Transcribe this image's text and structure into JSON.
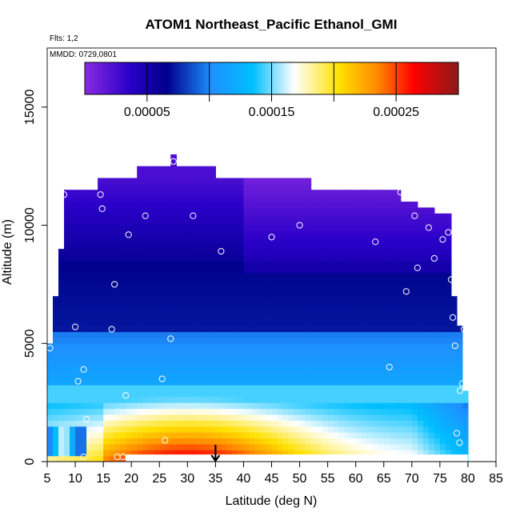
{
  "chart_data": {
    "type": "heatmap",
    "title": "ATOM1 Northeast_Pacific Ethanol_GMI",
    "note_flights": "Flts: 1,2",
    "note_dates": "MMDD: 0729,0801",
    "xlabel": "Latitude (deg N)",
    "ylabel": "Altitude (m)",
    "xlim": [
      5,
      85
    ],
    "ylim": [
      0,
      17500
    ],
    "x_ticks": [
      "5",
      "10",
      "15",
      "20",
      "25",
      "30",
      "35",
      "40",
      "45",
      "50",
      "55",
      "60",
      "65",
      "70",
      "75",
      "80",
      "85"
    ],
    "y_ticks": [
      "0",
      "5000",
      "10000",
      "15000"
    ],
    "colorbar": {
      "range": [
        0,
        0.0003
      ],
      "tick_labels": [
        "0.00005",
        "0.00015",
        "0.00025"
      ],
      "tick_values": [
        5e-05,
        0.00015,
        0.00025
      ],
      "colors": [
        "#8a2be2",
        "#00008b",
        "#1e90ff",
        "#00bfff",
        "#ffffe0",
        "#ffd700",
        "#ff8c00",
        "#ff0000",
        "#8b1a1a"
      ]
    },
    "grid": false,
    "arrow_marker_latitude": 35,
    "flight_points": [
      [
        5.5,
        4800
      ],
      [
        8,
        11300
      ],
      [
        10,
        5700
      ],
      [
        10.5,
        3400
      ],
      [
        11.5,
        3900
      ],
      [
        11.5,
        200
      ],
      [
        12,
        1800
      ],
      [
        14.5,
        11300
      ],
      [
        14.8,
        10700
      ],
      [
        16.5,
        5600
      ],
      [
        17,
        7500
      ],
      [
        17.5,
        200
      ],
      [
        18.5,
        200
      ],
      [
        19,
        2800
      ],
      [
        19.5,
        9600
      ],
      [
        22.5,
        10400
      ],
      [
        25.5,
        3500
      ],
      [
        26,
        900
      ],
      [
        27,
        5200
      ],
      [
        27.5,
        12700
      ],
      [
        31,
        10400
      ],
      [
        36,
        8900
      ],
      [
        45,
        9500
      ],
      [
        50,
        10000
      ],
      [
        63.5,
        9300
      ],
      [
        66,
        4000
      ],
      [
        68,
        11400
      ],
      [
        69,
        7200
      ],
      [
        70.5,
        10400
      ],
      [
        71,
        8200
      ],
      [
        73,
        9900
      ],
      [
        74,
        8600
      ],
      [
        75.5,
        9400
      ],
      [
        76.5,
        9700
      ],
      [
        77,
        7700
      ],
      [
        77.3,
        6100
      ],
      [
        77.7,
        4900
      ],
      [
        78,
        1200
      ],
      [
        78.5,
        800
      ],
      [
        78.6,
        3000
      ],
      [
        79,
        3300
      ],
      [
        79.3,
        5600
      ]
    ]
  }
}
